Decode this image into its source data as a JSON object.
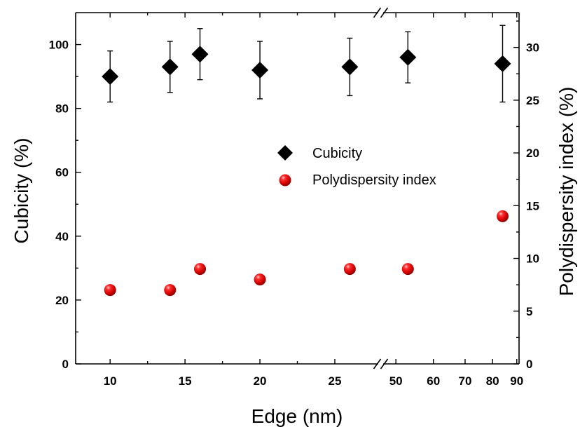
{
  "chart_data": {
    "type": "scatter",
    "xlabel": "Edge (nm)",
    "ylabel_left": "Cubicity (%)",
    "ylabel_right": "Polydispersity index  (%)",
    "ylim_left": [
      0,
      110
    ],
    "ylim_right": [
      0,
      33.3
    ],
    "x_segment_1": {
      "range": [
        7.7,
        27.9
      ],
      "ticks": [
        "10",
        "15",
        "20",
        "25"
      ],
      "tick_values": [
        10,
        15,
        20,
        25
      ],
      "minor_ticks": [
        12.5,
        17.5,
        22.5
      ]
    },
    "x_segment_2": {
      "scale": "log",
      "range": [
        47,
        91
      ],
      "ticks": [
        "50",
        "60",
        "70",
        "80",
        "90"
      ],
      "tick_values": [
        50,
        60,
        70,
        80,
        90
      ]
    },
    "y_left_ticks": [
      "0",
      "20",
      "40",
      "60",
      "80",
      "100"
    ],
    "y_left_tick_values": [
      0,
      20,
      40,
      60,
      80,
      100
    ],
    "y_right_ticks": [
      "0",
      "5",
      "10",
      "15",
      "20",
      "25",
      "30"
    ],
    "y_right_tick_values": [
      0,
      5,
      10,
      15,
      20,
      25,
      30
    ],
    "series": [
      {
        "name": "Cubicity",
        "axis": "left",
        "marker": "diamond",
        "color": "#000000",
        "points": [
          {
            "x": 10,
            "y": 90,
            "err": 8
          },
          {
            "x": 14,
            "y": 93,
            "err": 8
          },
          {
            "x": 16,
            "y": 97,
            "err": 8
          },
          {
            "x": 20,
            "y": 92,
            "err": 9
          },
          {
            "x": 26,
            "y": 93,
            "err": 9
          },
          {
            "x": 53,
            "y": 96,
            "err": 8
          },
          {
            "x": 84,
            "y": 94,
            "err": 12
          }
        ]
      },
      {
        "name": "Polydispersity index",
        "axis": "right",
        "marker": "sphere",
        "color": "#e00000",
        "points": [
          {
            "x": 10,
            "y": 7
          },
          {
            "x": 14,
            "y": 7
          },
          {
            "x": 16,
            "y": 9
          },
          {
            "x": 20,
            "y": 8
          },
          {
            "x": 26,
            "y": 9
          },
          {
            "x": 53,
            "y": 9
          },
          {
            "x": 84,
            "y": 14
          }
        ]
      }
    ],
    "axis_break": "x-axis between 27.9 and 47",
    "legend": {
      "position": "center-right"
    },
    "grid": false
  }
}
